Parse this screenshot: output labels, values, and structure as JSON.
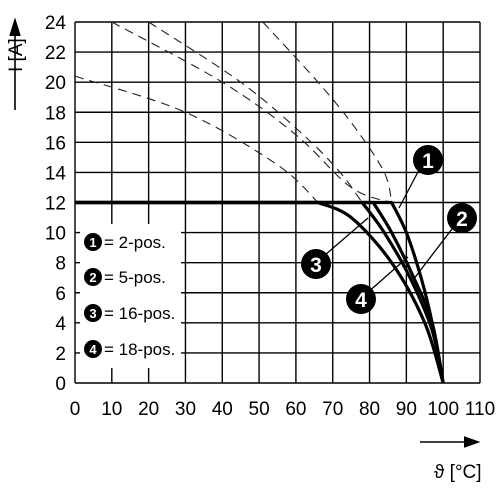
{
  "chart_data": {
    "type": "line",
    "xlabel": "ϑ [°C]",
    "ylabel": "I [A]",
    "xlim": [
      0,
      110
    ],
    "ylim": [
      0,
      24
    ],
    "x_ticks": [
      "0",
      "10",
      "20",
      "30",
      "40",
      "50",
      "60",
      "70",
      "80",
      "90",
      "100",
      "110"
    ],
    "y_ticks": [
      "0",
      "2",
      "4",
      "6",
      "8",
      "10",
      "12",
      "14",
      "16",
      "18",
      "20",
      "22",
      "24"
    ],
    "grid": true,
    "legend_placement": "lower-left",
    "series": [
      {
        "name": "2-pos.",
        "marker": "1",
        "values": [
          [
            0,
            12
          ],
          [
            86,
            12
          ],
          [
            90,
            10
          ],
          [
            94,
            7
          ],
          [
            97,
            4
          ],
          [
            100,
            0
          ]
        ],
        "derating_dashed": [
          [
            10,
            24
          ],
          [
            40,
            20
          ],
          [
            60,
            16.5
          ],
          [
            75,
            13
          ],
          [
            86,
            12
          ]
        ]
      },
      {
        "name": "5-pos.",
        "marker": "2",
        "values": [
          [
            0,
            12
          ],
          [
            81,
            12
          ],
          [
            86,
            10
          ],
          [
            92,
            7
          ],
          [
            97,
            4
          ],
          [
            100,
            0
          ]
        ],
        "derating_dashed": [
          [
            51,
            24
          ],
          [
            66,
            20
          ],
          [
            76,
            17
          ],
          [
            84,
            14
          ],
          [
            86,
            12
          ]
        ]
      },
      {
        "name": "16-pos.",
        "marker": "3",
        "values": [
          [
            0,
            12
          ],
          [
            66,
            12
          ],
          [
            75,
            11
          ],
          [
            86,
            8
          ],
          [
            95,
            4
          ],
          [
            100,
            0
          ]
        ],
        "derating_dashed": [
          [
            0,
            20.4
          ],
          [
            30,
            18
          ],
          [
            55,
            14.5
          ],
          [
            66,
            12
          ]
        ]
      },
      {
        "name": "18-pos.",
        "marker": "4",
        "values": [
          [
            0,
            12
          ],
          [
            78,
            12
          ],
          [
            84,
            10
          ],
          [
            91,
            7
          ],
          [
            97,
            3.5
          ],
          [
            100,
            0
          ]
        ],
        "derating_dashed": [
          [
            20,
            24
          ],
          [
            45,
            20
          ],
          [
            62,
            16.5
          ],
          [
            72,
            14
          ],
          [
            78,
            12
          ]
        ]
      }
    ]
  },
  "legend": [
    {
      "marker": "1",
      "label": "= 2-pos."
    },
    {
      "marker": "2",
      "label": "= 5-pos."
    },
    {
      "marker": "3",
      "label": "= 16-pos."
    },
    {
      "marker": "4",
      "label": "= 18-pos."
    }
  ],
  "callouts": [
    {
      "marker": "1"
    },
    {
      "marker": "2"
    },
    {
      "marker": "3"
    },
    {
      "marker": "4"
    }
  ],
  "colors": {
    "line": "#000000",
    "grid": "#000000",
    "badge": "#000000",
    "background": "#ffffff"
  }
}
